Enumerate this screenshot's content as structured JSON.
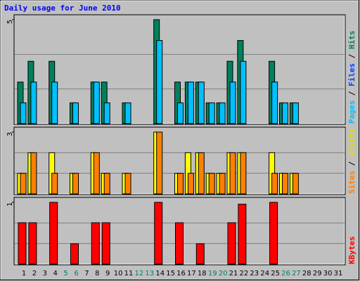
{
  "title": "Daily usage for June 2010",
  "chart_data": [
    {
      "type": "bar",
      "categories": [
        "1",
        "2",
        "3",
        "4",
        "5",
        "6",
        "7",
        "8",
        "9",
        "10",
        "11",
        "12",
        "13",
        "14",
        "15",
        "16",
        "17",
        "18",
        "19",
        "20",
        "21",
        "22",
        "23",
        "24",
        "25",
        "26",
        "27",
        "28",
        "29",
        "30",
        "31"
      ],
      "weekend": [
        5,
        6,
        12,
        13,
        19,
        20,
        26,
        27
      ],
      "weekend_color": "#00805c",
      "weekday_color": "#000000",
      "ylim": [
        0,
        5
      ],
      "yticks": [
        5
      ],
      "legend": [
        {
          "text": "Pages",
          "color": "#00c0ff"
        },
        {
          "text": " / ",
          "color": "#000000"
        },
        {
          "text": "Files",
          "color": "#0040ff"
        },
        {
          "text": " / ",
          "color": "#000000"
        },
        {
          "text": "Hits",
          "color": "#00805c"
        }
      ],
      "series": [
        {
          "name": "Hits",
          "color": "#00805c",
          "values": [
            2,
            3,
            0,
            3,
            0,
            1,
            0,
            2,
            2,
            0,
            1,
            0,
            0,
            5,
            0,
            2,
            2,
            2,
            1,
            1,
            3,
            4,
            0,
            0,
            3,
            1,
            1,
            0,
            0,
            0,
            0
          ]
        },
        {
          "name": "Pages",
          "color": "#00c0ff",
          "values": [
            1,
            2,
            0,
            2,
            0,
            1,
            0,
            2,
            1,
            0,
            1,
            0,
            0,
            4,
            0,
            1,
            2,
            2,
            1,
            1,
            2,
            3,
            0,
            0,
            2,
            1,
            1,
            0,
            0,
            0,
            0
          ]
        }
      ]
    },
    {
      "type": "bar",
      "ylim": [
        0,
        3
      ],
      "yticks": [
        3
      ],
      "legend": [
        {
          "text": "Sites",
          "color": "#ff8000"
        },
        {
          "text": " / ",
          "color": "#000000"
        },
        {
          "text": "Visits",
          "color": "#e0e000"
        }
      ],
      "series": [
        {
          "name": "Visits",
          "color": "#ffff00",
          "values": [
            1,
            2,
            0,
            2,
            0,
            1,
            0,
            2,
            1,
            0,
            1,
            0,
            0,
            3,
            0,
            1,
            2,
            2,
            1,
            1,
            2,
            2,
            0,
            0,
            2,
            1,
            1,
            0,
            0,
            0,
            0
          ]
        },
        {
          "name": "Sites",
          "color": "#ff8000",
          "values": [
            1,
            2,
            0,
            1,
            0,
            1,
            0,
            2,
            1,
            0,
            1,
            0,
            0,
            3,
            0,
            1,
            1,
            2,
            1,
            1,
            2,
            2,
            0,
            0,
            1,
            1,
            1,
            0,
            0,
            0,
            0
          ]
        }
      ]
    },
    {
      "type": "bar",
      "ylim": [
        0,
        1
      ],
      "yticks": [
        1
      ],
      "legend": [
        {
          "text": "KBytes",
          "color": "#ff0000"
        }
      ],
      "series": [
        {
          "name": "KBytes",
          "color": "#ff0000",
          "values": [
            0.67,
            0.67,
            0,
            1,
            0,
            0.33,
            0,
            0.67,
            0.67,
            0,
            0,
            0,
            0,
            1,
            0,
            0.67,
            0,
            0.33,
            0,
            0,
            0.67,
            0.97,
            0,
            0,
            1,
            0,
            0,
            0,
            0,
            0,
            0
          ]
        }
      ]
    }
  ]
}
